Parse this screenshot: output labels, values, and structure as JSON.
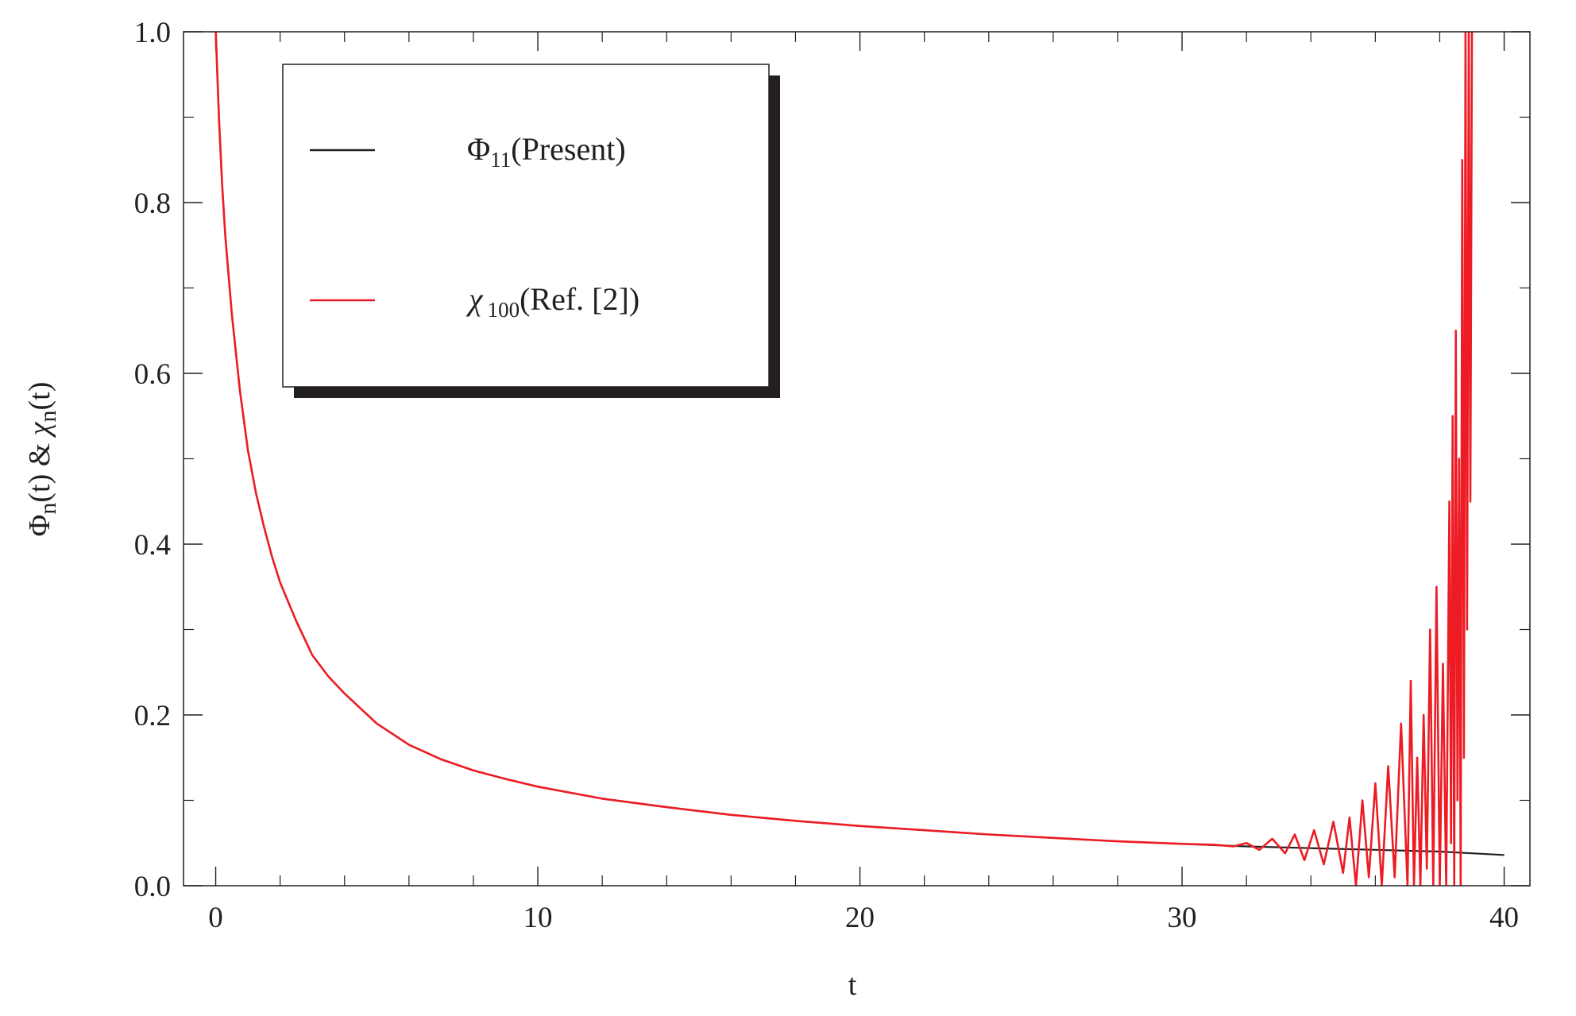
{
  "chart_data": {
    "type": "line",
    "title": "",
    "xlabel": "t",
    "ylabel_parts": {
      "phi": "Φ",
      "n1": "n",
      "mid": "(t) & ",
      "chi": "χ",
      "n2": "n",
      "end": "(t)"
    },
    "xlim": [
      -1,
      40.8
    ],
    "ylim": [
      0,
      1.0
    ],
    "x_ticks": [
      {
        "value": 0,
        "label": "0"
      },
      {
        "value": 10,
        "label": "10"
      },
      {
        "value": 20,
        "label": "20"
      },
      {
        "value": 30,
        "label": "30"
      },
      {
        "value": 40,
        "label": "40"
      }
    ],
    "y_ticks": [
      {
        "value": 0.0,
        "label": "0.0"
      },
      {
        "value": 0.2,
        "label": "0.2"
      },
      {
        "value": 0.4,
        "label": "0.4"
      },
      {
        "value": 0.6,
        "label": "0.6"
      },
      {
        "value": 0.8,
        "label": "0.8"
      },
      {
        "value": 1.0,
        "label": "1.0"
      }
    ],
    "x_minor_step": 2,
    "y_minor_step": 0.1,
    "grid": false,
    "legend_placement": "top-left",
    "series": [
      {
        "legend_symbol": "Φ",
        "legend_sub": "11",
        "legend_rest": "(Present)",
        "color": "#231f20",
        "x": [
          0,
          0.1,
          0.2,
          0.3,
          0.5,
          0.75,
          1,
          1.25,
          1.5,
          1.75,
          2,
          2.5,
          3,
          3.5,
          4,
          5,
          6,
          7,
          8,
          9,
          10,
          12,
          14,
          16,
          18,
          20,
          22,
          24,
          26,
          28,
          30,
          32,
          34,
          36,
          38,
          39,
          40
        ],
        "y": [
          1.0,
          0.9,
          0.82,
          0.76,
          0.67,
          0.58,
          0.51,
          0.46,
          0.42,
          0.385,
          0.355,
          0.31,
          0.27,
          0.245,
          0.225,
          0.19,
          0.165,
          0.148,
          0.135,
          0.125,
          0.116,
          0.102,
          0.092,
          0.083,
          0.076,
          0.07,
          0.065,
          0.06,
          0.056,
          0.052,
          0.049,
          0.046,
          0.044,
          0.042,
          0.04,
          0.038,
          0.036
        ]
      },
      {
        "legend_symbol": "χ",
        "legend_sub": "100",
        "legend_rest": "(Ref. [2])",
        "color": "#ed1c24",
        "x": [
          0,
          0.1,
          0.2,
          0.3,
          0.5,
          0.75,
          1,
          1.25,
          1.5,
          1.75,
          2,
          2.5,
          3,
          3.5,
          4,
          5,
          6,
          7,
          8,
          9,
          10,
          12,
          14,
          16,
          18,
          20,
          22,
          24,
          26,
          28,
          30,
          31,
          31.6,
          32,
          32.4,
          32.8,
          33.2,
          33.5,
          33.8,
          34.1,
          34.4,
          34.7,
          35,
          35.2,
          35.4,
          35.6,
          35.8,
          36,
          36.2,
          36.4,
          36.6,
          36.8,
          37,
          37.1,
          37.2,
          37.3,
          37.4,
          37.5,
          37.6,
          37.7,
          37.8,
          37.9,
          38,
          38.1,
          38.2,
          38.3,
          38.35,
          38.4,
          38.45,
          38.5,
          38.55,
          38.6,
          38.65,
          38.7,
          38.75,
          38.8,
          38.85,
          38.9,
          38.95,
          39.0
        ],
        "y": [
          1.0,
          0.9,
          0.82,
          0.76,
          0.67,
          0.58,
          0.51,
          0.46,
          0.42,
          0.385,
          0.355,
          0.31,
          0.27,
          0.245,
          0.225,
          0.19,
          0.165,
          0.148,
          0.135,
          0.125,
          0.116,
          0.102,
          0.092,
          0.083,
          0.076,
          0.07,
          0.065,
          0.06,
          0.056,
          0.052,
          0.049,
          0.048,
          0.046,
          0.05,
          0.042,
          0.055,
          0.038,
          0.06,
          0.03,
          0.065,
          0.025,
          0.075,
          0.015,
          0.08,
          0.0,
          0.1,
          0.01,
          0.12,
          0.0,
          0.14,
          0.01,
          0.19,
          0.0,
          0.24,
          0.0,
          0.15,
          0.0,
          0.2,
          0.02,
          0.3,
          0.0,
          0.35,
          0.0,
          0.26,
          0.0,
          0.45,
          0.05,
          0.55,
          0.0,
          0.65,
          0.1,
          0.5,
          0.0,
          0.85,
          0.15,
          1.0,
          0.3,
          1.0,
          0.45,
          1.0
        ]
      }
    ]
  }
}
